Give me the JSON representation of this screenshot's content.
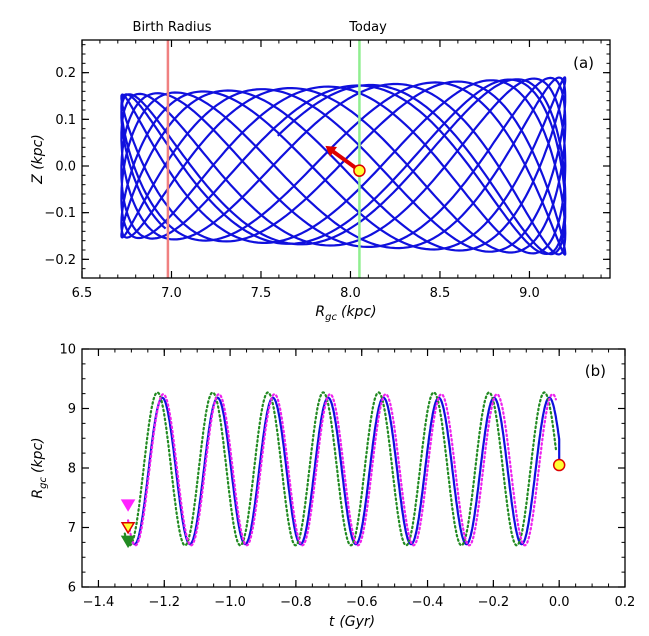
{
  "chart_data": [
    {
      "panel_label": "(a)",
      "type": "line",
      "xlabel_main": "R",
      "xlabel_sub": "gc",
      "xlabel_unit": "(kpc)",
      "ylabel": "Z (kpc)",
      "xlim": [
        6.5,
        9.45
      ],
      "ylim": [
        -0.24,
        0.27
      ],
      "xticks": [
        6.5,
        7.0,
        7.5,
        8.0,
        8.5,
        9.0
      ],
      "xtick_labels": [
        "6.5",
        "7.0",
        "7.5",
        "8.0",
        "8.5",
        "9.0"
      ],
      "yticks": [
        -0.2,
        -0.1,
        0.0,
        0.1,
        0.2
      ],
      "ytick_labels": [
        "−0.2",
        "−0.1",
        "0.0",
        "0.1",
        "0.2"
      ],
      "orbit": {
        "r_range": [
          6.72,
          9.2
        ],
        "z_amplitude_inner": 0.153,
        "z_amplitude_outer": 0.19,
        "color": "#1010dd",
        "radial_cycles": 7.9,
        "vertical_cycles": 22.6
      },
      "reference_lines": [
        {
          "label": "Birth Radius",
          "x": 6.98,
          "color": "#f08080"
        },
        {
          "label": "Today",
          "x": 8.05,
          "color": "#90ee90"
        }
      ],
      "current_position": {
        "r": 8.05,
        "z": -0.01,
        "color": "#ffff33",
        "edge": "#dd0000"
      },
      "velocity_arrow": {
        "from": [
          8.05,
          -0.01
        ],
        "to": [
          7.86,
          0.043
        ],
        "color": "#dd0000"
      }
    },
    {
      "panel_label": "(b)",
      "type": "line",
      "xlabel_main": "t",
      "xlabel_unit": "(Gyr)",
      "ylabel_main": "R",
      "ylabel_sub": "gc",
      "ylabel_unit": "(kpc)",
      "xlim": [
        -1.45,
        0.2
      ],
      "ylim": [
        6,
        10
      ],
      "xticks": [
        -1.4,
        -1.2,
        -1.0,
        -0.8,
        -0.6,
        -0.4,
        -0.2,
        0.0,
        0.2
      ],
      "xtick_labels": [
        "−1.4",
        "−1.2",
        "−1.0",
        "−0.8",
        "−0.6",
        "−0.4",
        "−0.2",
        "0.0",
        "0.2"
      ],
      "yticks": [
        6,
        7,
        8,
        9,
        10
      ],
      "ytick_labels": [
        "6",
        "7",
        "8",
        "9",
        "10"
      ],
      "series": [
        {
          "style": "solid",
          "color": "#1010dd",
          "t_range": [
            -1.3,
            0.0
          ],
          "r_min": 6.72,
          "r_max": 9.18,
          "period": 0.168,
          "t_peak": -0.03
        },
        {
          "style": "dotted",
          "color": "#228b22",
          "t_range": [
            -1.32,
            -0.01
          ],
          "r_min": 6.7,
          "r_max": 9.27,
          "period": 0.168,
          "t_peak": -0.045
        },
        {
          "style": "dotted",
          "color": "#ee22ee",
          "t_range": [
            -1.31,
            -0.01
          ],
          "r_min": 6.7,
          "r_max": 9.24,
          "period": 0.169,
          "t_peak": -0.02
        }
      ],
      "birth_markers": [
        {
          "t": -1.31,
          "r": 7.38,
          "color": "#ff22ff",
          "edge": "#ff22ff",
          "shape": "triangle-down"
        },
        {
          "t": -1.31,
          "r": 7.0,
          "color": "#ffff33",
          "edge": "#dd0000",
          "shape": "triangle-down"
        },
        {
          "t": -1.31,
          "r": 6.77,
          "color": "#228b22",
          "edge": "#228b22",
          "shape": "triangle-down"
        }
      ],
      "current_position": {
        "t": 0.0,
        "r": 8.05,
        "color": "#ffff33",
        "edge": "#dd0000"
      }
    }
  ]
}
